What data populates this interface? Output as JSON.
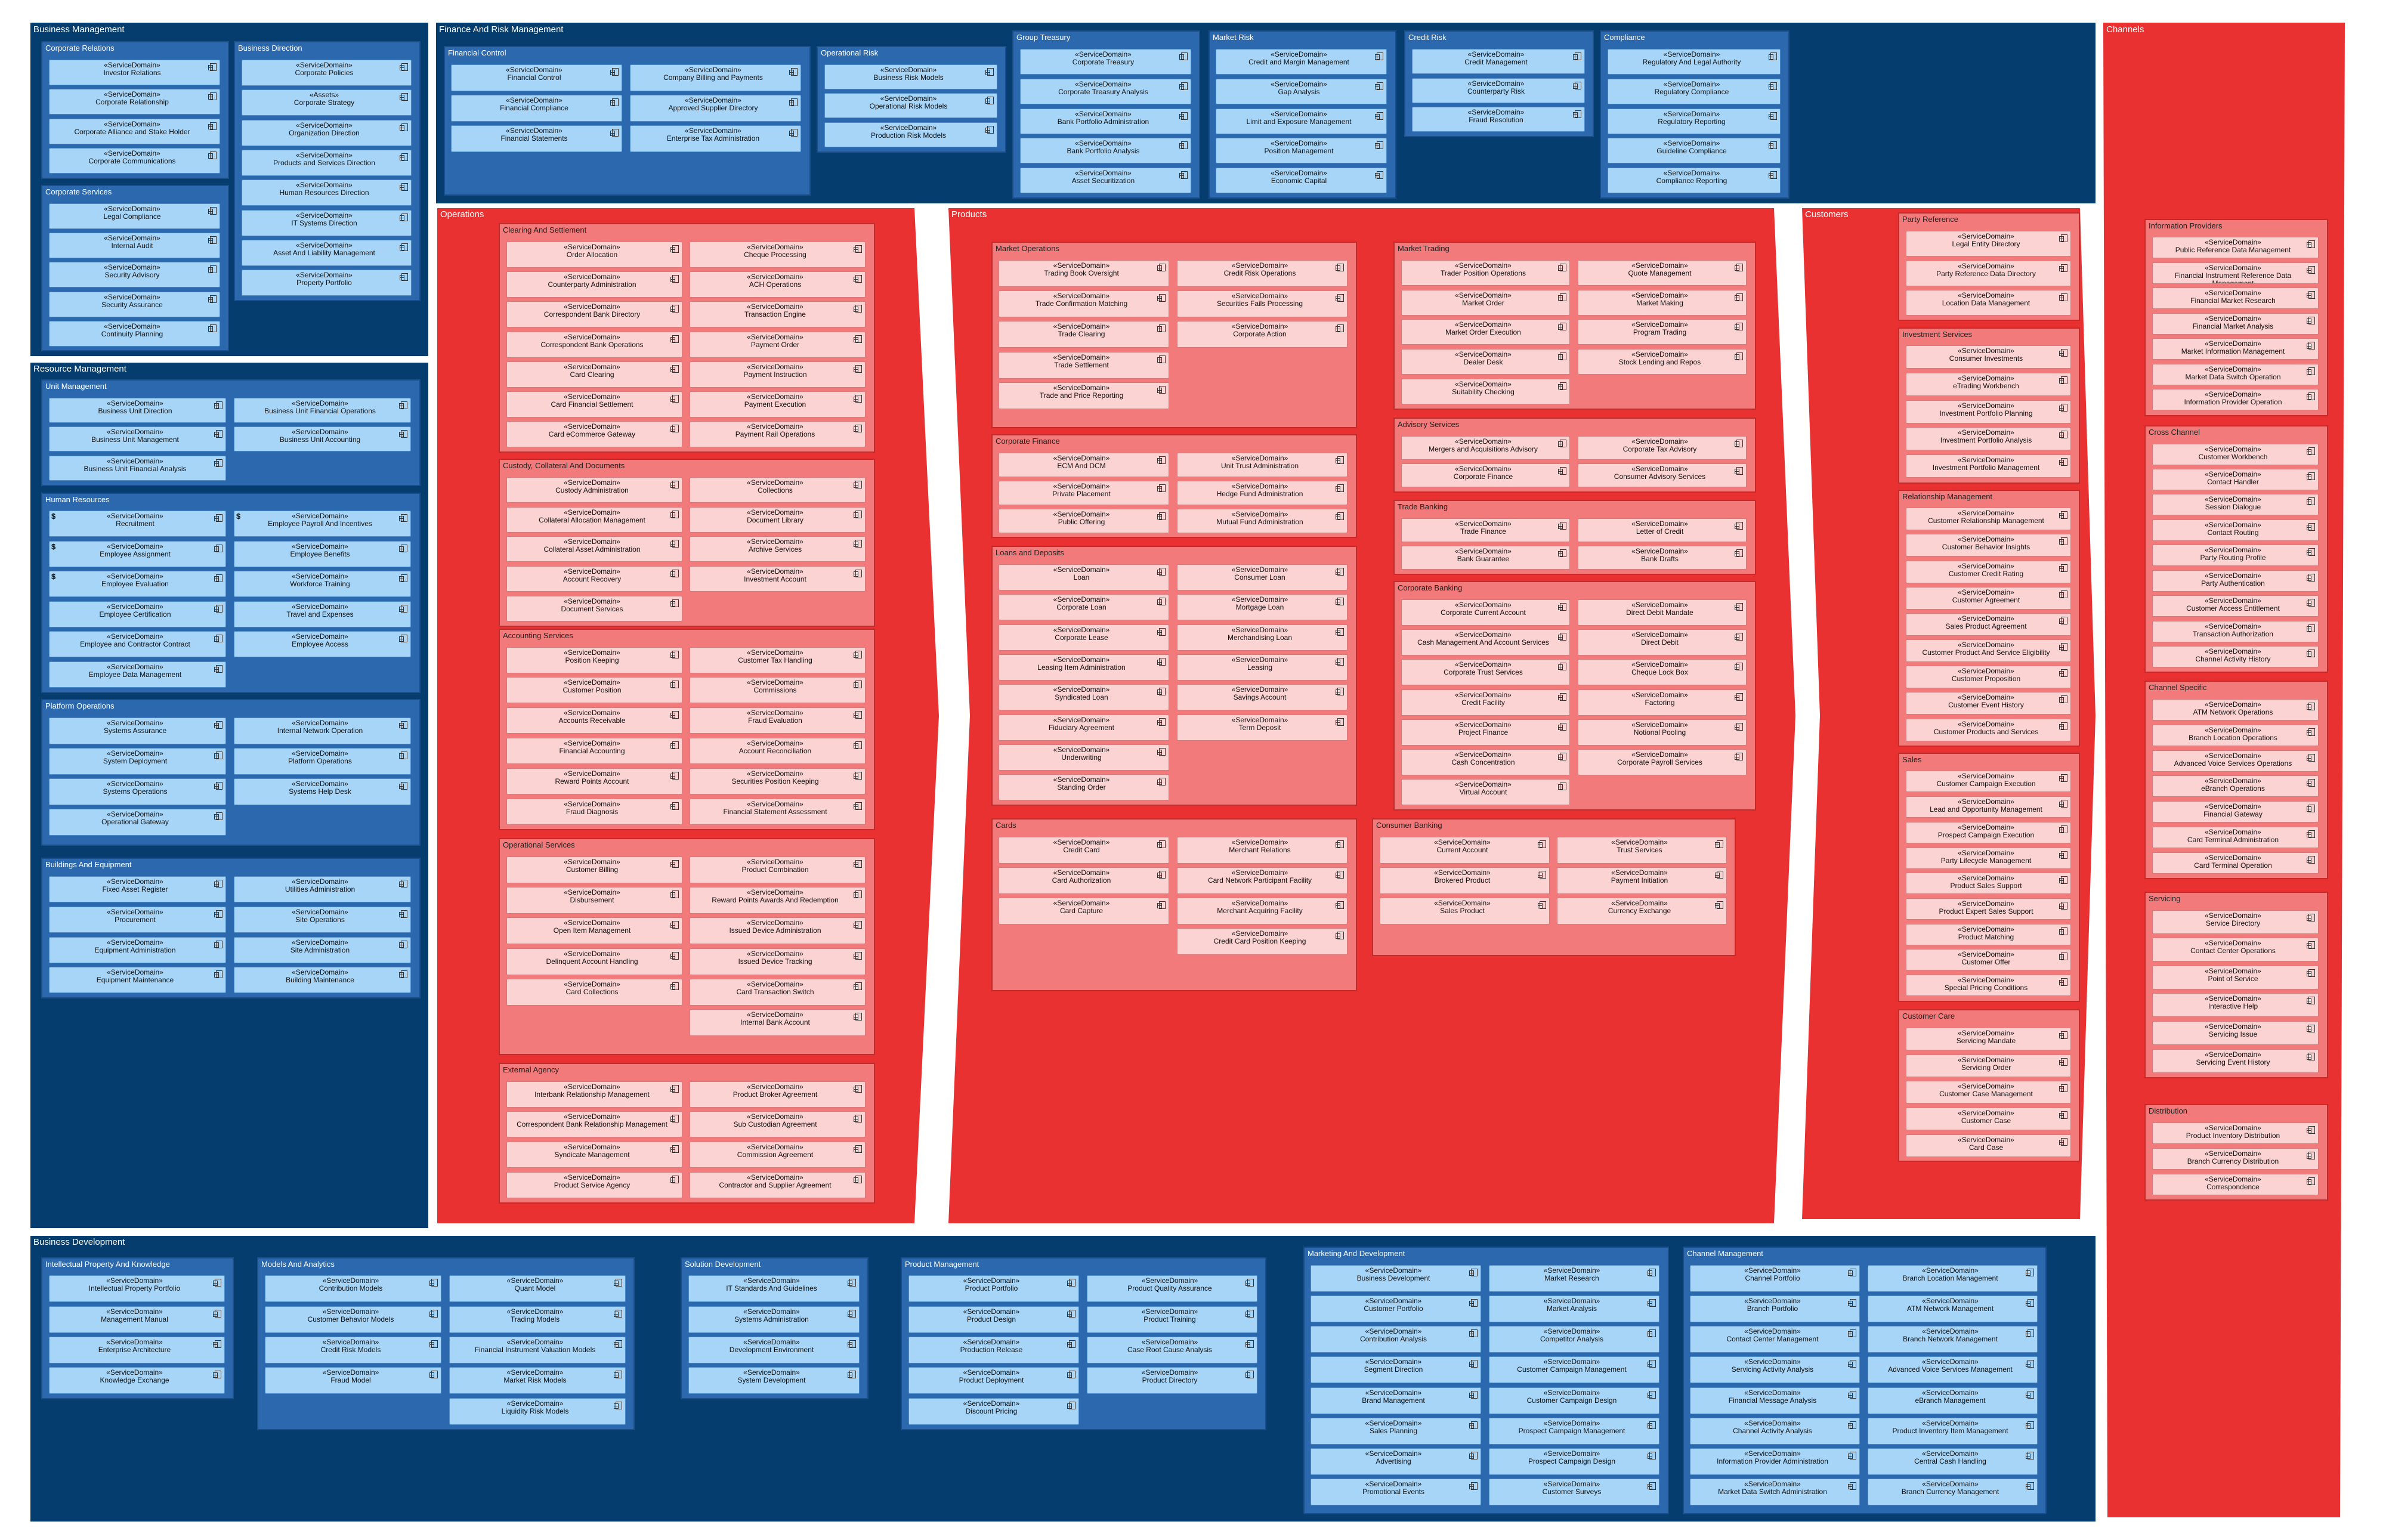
{
  "stereotype": "«ServiceDomain»",
  "areas": [
    {
      "title": "Business Management",
      "groups": [
        {
          "title": "Corporate Relations",
          "columns": [
            [
              "Investor Relations",
              "Corporate Relationship",
              "Corporate Alliance and Stake Holder",
              "Corporate Communications"
            ]
          ]
        },
        {
          "title": "Business Direction",
          "columns": [
            [
              "Corporate Policies",
              {
                "stereotype": "«Assets»",
                "name": "Corporate Strategy"
              },
              "Organization Direction",
              "Products and Services Direction",
              "Human Resources Direction",
              "IT Systems Direction",
              "Asset And Liability Management",
              "Property Portfolio"
            ]
          ]
        },
        {
          "title": "Corporate Services",
          "columns": [
            [
              "Legal Compliance",
              "Internal Audit",
              "Security Advisory",
              "Security Assurance",
              "Continuity Planning"
            ]
          ]
        }
      ]
    },
    {
      "title": "Resource Management",
      "groups": [
        {
          "title": "Unit Management",
          "columns": [
            [
              "Business Unit Direction",
              "Business Unit Management",
              "Business Unit Financial Analysis"
            ],
            [
              "Business Unit Financial Operations",
              "Business Unit Accounting"
            ]
          ]
        },
        {
          "title": "Human Resources",
          "columns": [
            [
              {
                "badge": "$",
                "name": "Recruitment"
              },
              {
                "badge": "$",
                "name": "Employee Assignment"
              },
              {
                "badge": "$",
                "name": "Employee Evaluation"
              },
              "Employee Certification",
              "Employee and Contractor Contract",
              "Employee Data Management"
            ],
            [
              {
                "badge": "$",
                "name": "Employee Payroll And Incentives"
              },
              "Employee Benefits",
              "Workforce Training",
              "Travel and Expenses",
              "Employee Access"
            ]
          ]
        },
        {
          "title": "Platform Operations",
          "columns": [
            [
              "Systems Assurance",
              "System Deployment",
              "Systems Operations",
              "Operational Gateway"
            ],
            [
              "Internal Network Operation",
              "Platform Operations",
              "Systems Help Desk"
            ]
          ]
        },
        {
          "title": "Buildings And Equipment",
          "columns": [
            [
              "Fixed Asset Register",
              "Procurement",
              "Equipment Administration",
              "Equipment Maintenance"
            ],
            [
              "Utilities Administration",
              "Site Operations",
              "Site Administration",
              "Building Maintenance"
            ]
          ]
        }
      ]
    },
    {
      "title": "Finance And Risk Management",
      "groups": [
        {
          "title": "Financial Control",
          "columns": [
            [
              "Financial Control",
              "Financial Compliance",
              "Financial Statements"
            ],
            [
              "Company Billing and Payments",
              "Approved Supplier Directory",
              "Enterprise Tax Administration"
            ]
          ]
        },
        {
          "title": "Operational Risk",
          "columns": [
            [
              "Business Risk Models",
              "Operational Risk Models",
              "Production Risk Models"
            ]
          ]
        },
        {
          "title": "Group Treasury",
          "columns": [
            [
              "Corporate Treasury",
              "Corporate Treasury Analysis",
              "Bank Portfolio Administration",
              "Bank Portfolio Analysis",
              "Asset Securitization"
            ]
          ]
        },
        {
          "title": "Market Risk",
          "columns": [
            [
              "Credit and Margin Management",
              "Gap Analysis",
              "Limit and Exposure Management",
              "Position Management",
              "Economic Capital"
            ]
          ]
        },
        {
          "title": "Credit Risk",
          "columns": [
            [
              "Credit Management",
              "Counterparty Risk",
              "Fraud Resolution"
            ]
          ]
        },
        {
          "title": "Compliance",
          "columns": [
            [
              "Regulatory And Legal Authority",
              "Regulatory Compliance",
              "Regulatory Reporting",
              "Guideline Compliance",
              "Compliance Reporting"
            ]
          ]
        }
      ]
    },
    {
      "title": "Operations",
      "groups": [
        {
          "title": "Clearing And Settlement",
          "columns": [
            [
              "Order Allocation",
              "Counterparty Administration",
              "Correspondent Bank Directory",
              "Correspondent Bank Operations",
              "Card Clearing",
              "Card Financial Settlement",
              "Card eCommerce Gateway"
            ],
            [
              "Cheque Processing",
              "ACH Operations",
              "Transaction Engine",
              "Payment Order",
              "Payment Instruction",
              "Payment Execution",
              "Payment Rail Operations"
            ]
          ]
        },
        {
          "title": "Custody, Collateral And Documents",
          "columns": [
            [
              "Custody Administration",
              "Collateral Allocation Management",
              "Collateral Asset Administration",
              "Account Recovery",
              "Document Services"
            ],
            [
              "Collections",
              "Document Library",
              "Archive Services",
              "Investment Account"
            ]
          ]
        },
        {
          "title": "Accounting Services",
          "columns": [
            [
              "Position Keeping",
              "Customer Position",
              "Accounts Receivable",
              "Financial Accounting",
              "Reward Points Account",
              "Fraud Diagnosis"
            ],
            [
              "Customer Tax Handling",
              "Commissions",
              "Fraud Evaluation",
              "Account Reconciliation",
              "Securities Position Keeping",
              "Financial Statement Assessment"
            ]
          ]
        },
        {
          "title": "Operational Services",
          "columns": [
            [
              "Customer Billing",
              "Disbursement",
              "Open Item Management",
              "Delinquent Account Handling",
              "Card Collections"
            ],
            [
              "Product Combination",
              "Reward Points Awards And Redemption",
              "Issued Device Administration",
              "Issued Device Tracking",
              "Card Transaction Switch",
              "Internal Bank Account"
            ]
          ]
        },
        {
          "title": "External Agency",
          "columns": [
            [
              "Interbank Relationship Management",
              "Correspondent Bank Relationship Management",
              "Syndicate Management",
              "Product Service Agency"
            ],
            [
              "Product Broker Agreement",
              "Sub Custodian Agreement",
              "Commission Agreement",
              "Contractor and Supplier Agreement"
            ]
          ]
        }
      ]
    },
    {
      "title": "Products",
      "groups": [
        {
          "title": "Market Operations",
          "columns": [
            [
              "Trading Book Oversight",
              "Trade Confirmation Matching",
              "Trade Clearing",
              "Trade Settlement",
              "Trade and Price Reporting"
            ],
            [
              "Credit Risk Operations",
              "Securities Fails Processing",
              "Corporate Action"
            ]
          ]
        },
        {
          "title": "Corporate Finance",
          "columns": [
            [
              "ECM And DCM",
              "Private Placement",
              "Public Offering"
            ],
            [
              "Unit Trust Administration",
              "Hedge Fund Administration",
              "Mutual Fund Administration"
            ]
          ]
        },
        {
          "title": "Loans and Deposits",
          "columns": [
            [
              "Loan",
              "Corporate Loan",
              "Corporate Lease",
              "Leasing Item Administration",
              "Syndicated Loan",
              "Fiduciary Agreement",
              "Underwriting",
              "Standing Order"
            ],
            [
              "Consumer Loan",
              "Mortgage Loan",
              "Merchandising Loan",
              "Leasing",
              "Savings Account",
              "Term Deposit"
            ]
          ]
        },
        {
          "title": "Cards",
          "columns": [
            [
              "Credit Card",
              "Card Authorization",
              "Card Capture"
            ],
            [
              "Merchant Relations",
              "Card Network Participant Facility",
              "Merchant Acquiring Facility",
              "Credit Card Position Keeping"
            ]
          ]
        },
        {
          "title": "Market Trading",
          "columns": [
            [
              "Trader Position Operations",
              "Market Order",
              "Market Order Execution",
              "Dealer Desk",
              "Suitability Checking"
            ],
            [
              "Quote Management",
              "Market Making",
              "Program Trading",
              "Stock Lending and Repos"
            ]
          ]
        },
        {
          "title": "Advisory Services",
          "columns": [
            [
              "Mergers and Acquisitions Advisory",
              "Corporate Finance"
            ],
            [
              "Corporate Tax Advisory",
              "Consumer Advisory Services"
            ]
          ]
        },
        {
          "title": "Trade Banking",
          "columns": [
            [
              "Trade Finance",
              "Bank Guarantee"
            ],
            [
              "Letter of Credit",
              "Bank Drafts"
            ]
          ]
        },
        {
          "title": "Corporate Banking",
          "columns": [
            [
              "Corporate Current Account",
              "Cash Management And Account Services",
              "Corporate Trust Services",
              "Credit Facility",
              "Project Finance",
              "Cash Concentration",
              "Virtual Account"
            ],
            [
              "Direct Debit Mandate",
              "Direct Debit",
              "Cheque Lock Box",
              "Factoring",
              "Notional Pooling",
              "Corporate Payroll Services"
            ]
          ]
        },
        {
          "title": "Consumer Banking",
          "columns": [
            [
              "Current Account",
              "Brokered Product",
              "Sales Product"
            ],
            [
              "Trust Services",
              "Payment Initiation",
              "Currency Exchange"
            ]
          ]
        }
      ]
    },
    {
      "title": "Customers",
      "groups": [
        {
          "title": "Party Reference",
          "columns": [
            [
              "Legal Entity Directory",
              "Party Reference Data Directory",
              "Location Data Management"
            ]
          ]
        },
        {
          "title": "Investment Services",
          "columns": [
            [
              "Consumer Investments",
              "eTrading Workbench",
              "Investment Portfolio Planning",
              "Investment Portfolio Analysis",
              "Investment Portfolio Management"
            ]
          ]
        },
        {
          "title": "Relationship Management",
          "columns": [
            [
              "Customer Relationship Management",
              "Customer Behavior Insights",
              "Customer Credit Rating",
              "Customer Agreement",
              "Sales Product Agreement",
              "Customer Product And Service Eligibility",
              "Customer Proposition",
              "Customer Event History",
              "Customer Products and Services"
            ]
          ]
        },
        {
          "title": "Sales",
          "columns": [
            [
              "Customer Campaign Execution",
              "Lead and Opportunity Management",
              "Prospect Campaign Execution",
              "Party Lifecycle Management",
              "Product Sales Support",
              "Product Expert Sales Support",
              "Product Matching",
              "Customer Offer",
              "Special Pricing Conditions"
            ]
          ]
        },
        {
          "title": "Customer Care",
          "columns": [
            [
              "Servicing Mandate",
              "Servicing Order",
              "Customer Case Management",
              "Customer Case",
              "Card Case"
            ]
          ]
        }
      ]
    },
    {
      "title": "Channels",
      "groups": [
        {
          "title": "Information Providers",
          "columns": [
            [
              "Public Reference Data Management",
              "Financial Instrument Reference Data Management",
              "Financial Market Research",
              "Financial Market Analysis",
              "Market Information Management",
              "Market Data Switch Operation",
              "Information Provider Operation"
            ]
          ]
        },
        {
          "title": "Cross Channel",
          "columns": [
            [
              "Customer Workbench",
              "Contact Handler",
              "Session Dialogue",
              "Contact Routing",
              "Party Routing Profile",
              "Party Authentication",
              "Customer Access Entitlement",
              "Transaction Authorization",
              "Channel Activity History"
            ]
          ]
        },
        {
          "title": "Channel Specific",
          "columns": [
            [
              "ATM Network Operations",
              "Branch Location Operations",
              "Advanced Voice Services Operations",
              "eBranch Operations",
              "Financial Gateway",
              "Card Terminal Administration",
              "Card Terminal Operation"
            ]
          ]
        },
        {
          "title": "Servicing",
          "columns": [
            [
              "Service Directory",
              "Contact Center Operations",
              "Point of Service",
              "Interactive Help",
              "Servicing Issue",
              "Servicing Event History"
            ]
          ]
        },
        {
          "title": "Distribution",
          "columns": [
            [
              "Product Inventory Distribution",
              "Branch Currency Distribution",
              "Correspondence"
            ]
          ]
        }
      ]
    },
    {
      "title": "Business Development",
      "groups": [
        {
          "title": "Intellectual Property And Knowledge",
          "columns": [
            [
              "Intellectual Property Portfolio",
              "Management Manual",
              "Enterprise Architecture",
              "Knowledge Exchange"
            ]
          ]
        },
        {
          "title": "Models And Analytics",
          "columns": [
            [
              "Contribution Models",
              "Customer Behavior Models",
              "Credit Risk Models",
              "Fraud Model"
            ],
            [
              "Quant Model",
              "Trading Models",
              "Financial Instrument Valuation Models",
              "Market Risk Models",
              "Liquidity Risk Models"
            ]
          ]
        },
        {
          "title": "Solution Development",
          "columns": [
            [
              "IT Standards And Guidelines",
              "Systems Administration",
              "Development Environment",
              "System Development"
            ]
          ]
        },
        {
          "title": "Product Management",
          "columns": [
            [
              "Product Portfolio",
              "Product Design",
              "Production Release",
              "Product Deployment",
              "Discount Pricing"
            ],
            [
              "Product Quality Assurance",
              "Product Training",
              "Case Root Cause Analysis",
              "Product Directory"
            ]
          ]
        },
        {
          "title": "Marketing And Development",
          "columns": [
            [
              "Business Development",
              "Customer Portfolio",
              "Contribution Analysis",
              "Segment Direction",
              "Brand Management",
              "Sales Planning",
              "Advertising",
              "Promotional Events"
            ],
            [
              "Market Research",
              "Market Analysis",
              "Competitor Analysis",
              "Customer Campaign Management",
              "Customer Campaign Design",
              "Prospect Campaign Management",
              "Prospect Campaign Design",
              "Customer Surveys"
            ]
          ]
        },
        {
          "title": "Channel Management",
          "columns": [
            [
              "Channel Portfolio",
              "Branch Portfolio",
              "Contact Center Management",
              "Servicing Activity Analysis",
              "Financial Message Analysis",
              "Channel Activity Analysis",
              "Information Provider Administration",
              "Market Data Switch Administration"
            ],
            [
              "Branch Location Management",
              "ATM Network Management",
              "Branch Network Management",
              "Advanced Voice Services Management",
              "eBranch Management",
              "Product Inventory Item Management",
              "Central Cash Handling",
              "Branch Currency Management"
            ]
          ]
        }
      ]
    }
  ]
}
